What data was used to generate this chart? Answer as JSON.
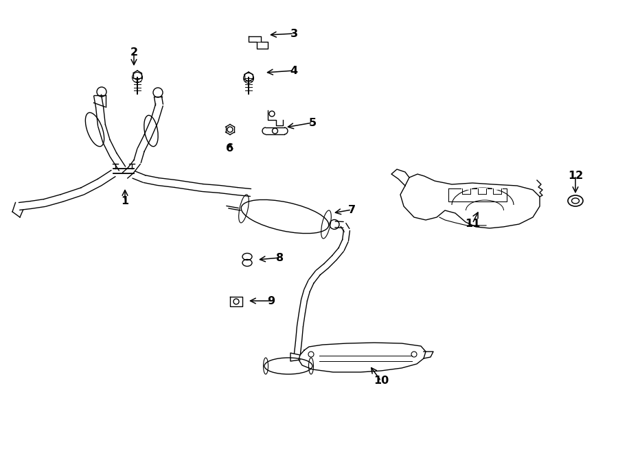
{
  "bg_color": "#ffffff",
  "line_color": "#000000",
  "text_color": "#000000",
  "figsize": [
    9.0,
    6.61
  ],
  "dpi": 100
}
